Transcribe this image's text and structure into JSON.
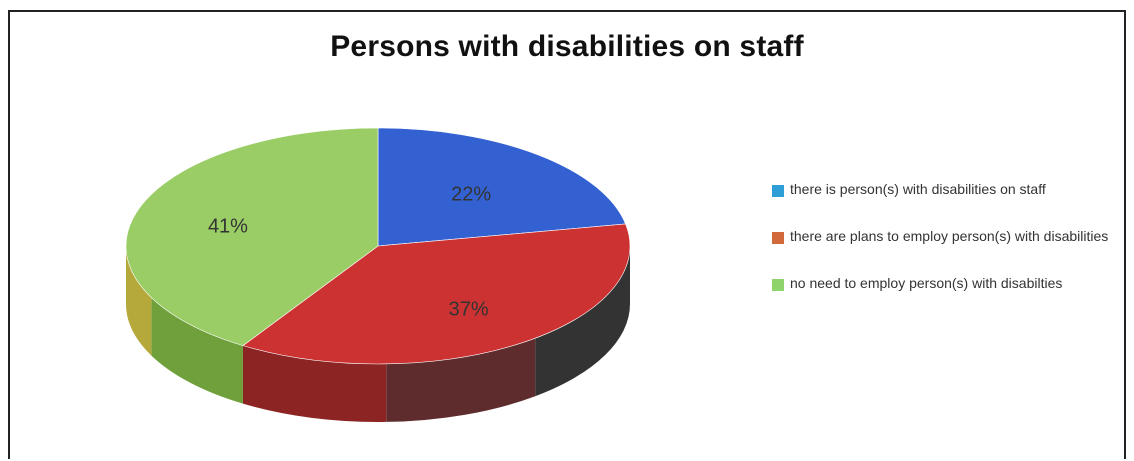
{
  "chart_data": {
    "type": "pie",
    "variant": "3d",
    "title": "Persons with disabilities on staff",
    "legend_position": "right",
    "slices": [
      {
        "label": "there is person(s) with disabilities on staff",
        "value": 22,
        "display": "22%",
        "color": "#3461d2",
        "side_color": "#22388b"
      },
      {
        "label": "there are plans to employ person(s) with disabilities",
        "value": 37,
        "display": "37%",
        "color": "#cc3232",
        "side_color": "#8c2424"
      },
      {
        "label": "no need to employ person(s) with disabilties",
        "value": 41,
        "display": "41%",
        "color": "#9acd66",
        "side_color": "#6fa03c"
      }
    ],
    "legend_swatch_colors": [
      "#2e9fd6",
      "#d2693a",
      "#8fd46a"
    ],
    "dark_side_color": "#333333",
    "maroon_side_color": "#5e2c2c",
    "olive_side_color": "#b5a93c"
  }
}
